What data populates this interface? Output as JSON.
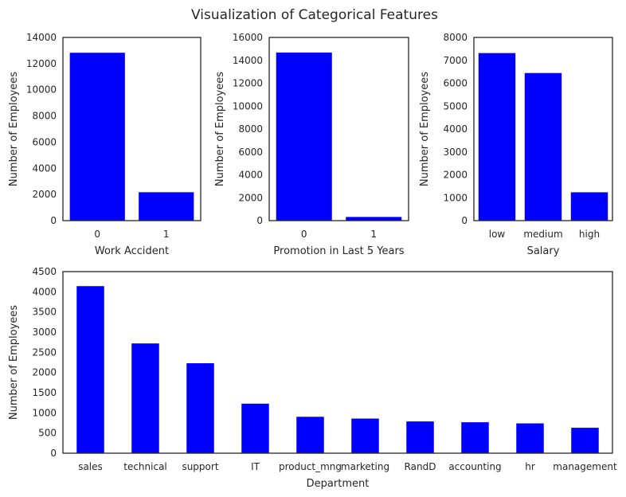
{
  "figure": {
    "title": "Visualization of Categorical Features",
    "bar_color": "#0000ff"
  },
  "chart_data": [
    {
      "type": "bar",
      "title": "",
      "categories": [
        "0",
        "1"
      ],
      "values": [
        12830,
        2170
      ],
      "xlabel": "Work Accident",
      "ylabel": "Number of Employees",
      "ylim": [
        0,
        14000
      ],
      "yticks": [
        "0",
        "2000",
        "4000",
        "6000",
        "8000",
        "10000",
        "12000",
        "14000"
      ],
      "grid": false
    },
    {
      "type": "bar",
      "title": "",
      "categories": [
        "0",
        "1"
      ],
      "values": [
        14680,
        320
      ],
      "xlabel": "Promotion in Last 5 Years",
      "ylabel": "Number of Employees",
      "ylim": [
        0,
        16000
      ],
      "yticks": [
        "0",
        "2000",
        "4000",
        "6000",
        "8000",
        "10000",
        "12000",
        "14000",
        "16000"
      ],
      "grid": false
    },
    {
      "type": "bar",
      "title": "",
      "categories": [
        "low",
        "medium",
        "high"
      ],
      "values": [
        7316,
        6446,
        1237
      ],
      "xlabel": "Salary",
      "ylabel": "Number of Employees",
      "ylim": [
        0,
        8000
      ],
      "yticks": [
        "0",
        "1000",
        "2000",
        "3000",
        "4000",
        "5000",
        "6000",
        "7000",
        "8000"
      ],
      "grid": false
    },
    {
      "type": "bar",
      "title": "",
      "categories": [
        "sales",
        "technical",
        "support",
        "IT",
        "product_mng",
        "marketing",
        "RandD",
        "accounting",
        "hr",
        "management"
      ],
      "values": [
        4140,
        2720,
        2229,
        1227,
        902,
        858,
        787,
        767,
        739,
        630
      ],
      "xlabel": "Department",
      "ylabel": "Number of Employees",
      "ylim": [
        0,
        4500
      ],
      "yticks": [
        "0",
        "500",
        "1000",
        "1500",
        "2000",
        "2500",
        "3000",
        "3500",
        "4000",
        "4500"
      ],
      "grid": false
    }
  ]
}
